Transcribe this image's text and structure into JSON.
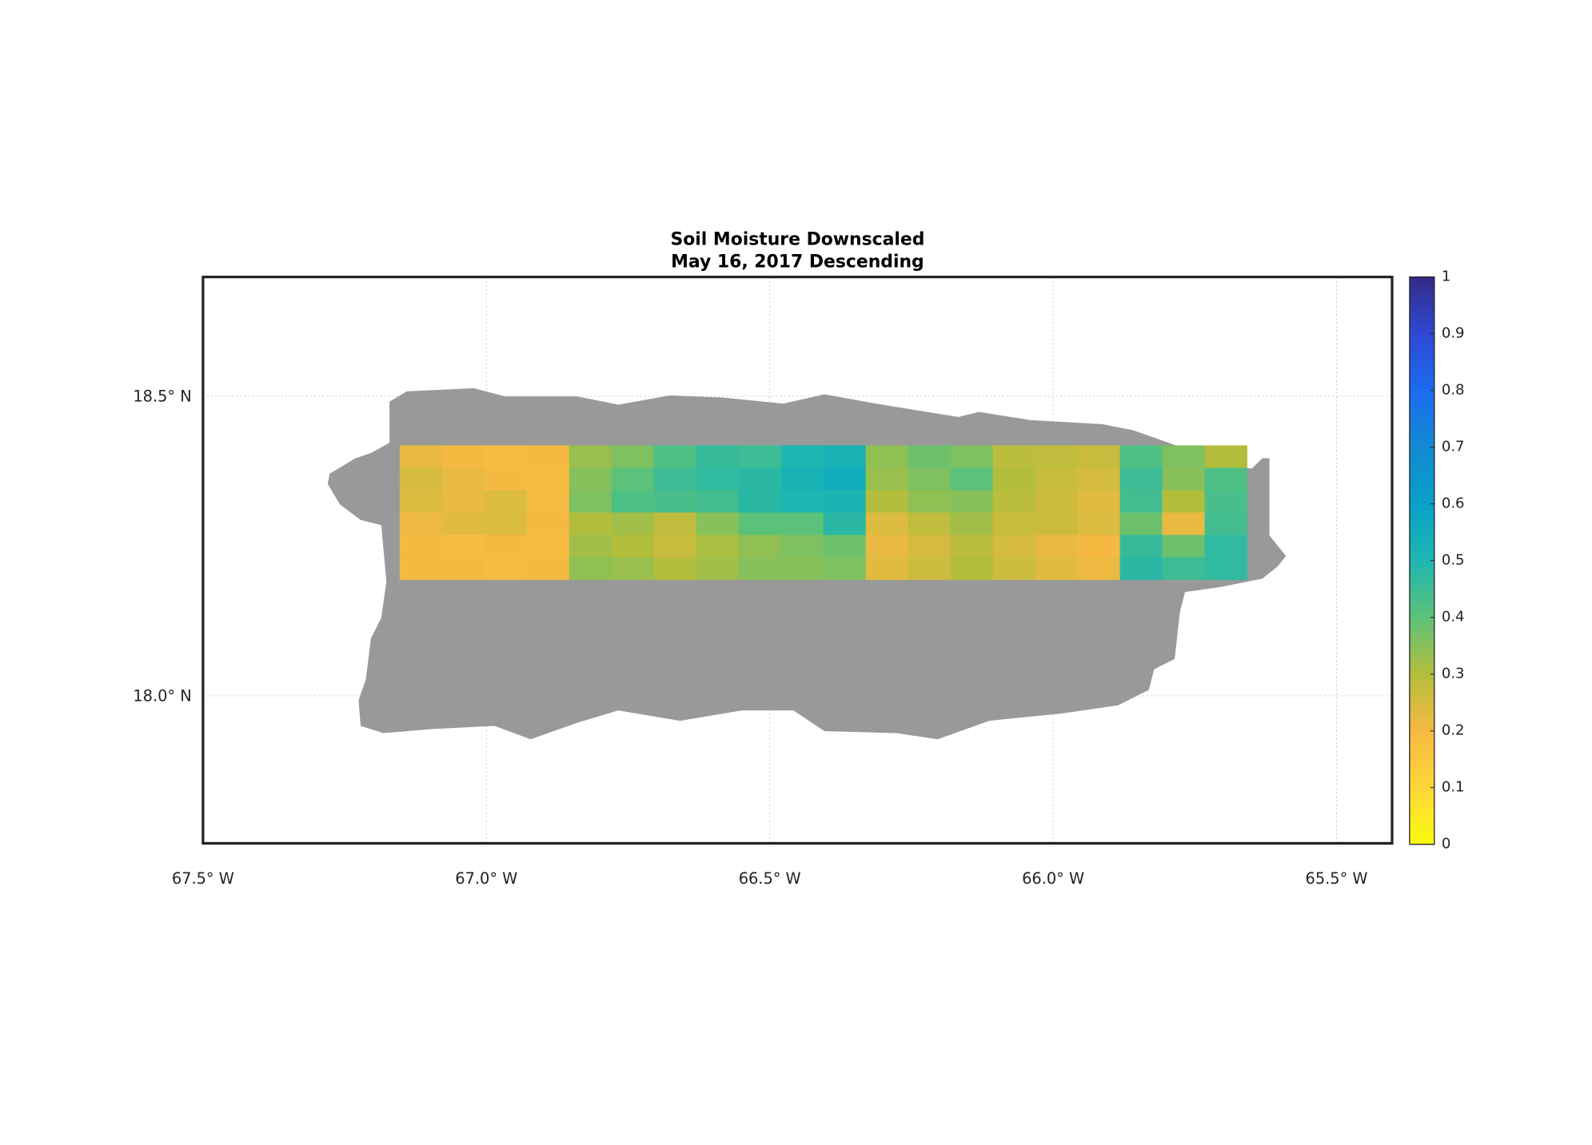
{
  "chart_data": {
    "type": "heatmap",
    "title": "Soil Moisture Downscaled",
    "subtitle": "May 16, 2017 Descending",
    "xlim": [
      -67.5,
      -65.402
    ],
    "ylim": [
      17.754,
      18.699
    ],
    "xticks": [
      {
        "value": -67.5,
        "label": "67.5° W"
      },
      {
        "value": -67.0,
        "label": "67.0° W"
      },
      {
        "value": -66.5,
        "label": "66.5° W"
      },
      {
        "value": -66.0,
        "label": "66.0° W"
      },
      {
        "value": -65.5,
        "label": "65.5° W"
      }
    ],
    "yticks": [
      {
        "value": 18.0,
        "label": "18.0° N"
      },
      {
        "value": 18.5,
        "label": "18.5° N"
      }
    ],
    "grid": true,
    "grid_lon": [
      -67.153,
      -65.658
    ],
    "grid_lat": [
      18.418,
      18.194
    ],
    "values": [
      [
        0.22,
        0.2,
        0.19,
        0.2,
        0.33,
        0.36,
        0.42,
        0.46,
        0.45,
        0.5,
        0.52,
        0.34,
        0.38,
        0.36,
        0.29,
        0.28,
        0.27,
        0.42,
        0.36,
        0.3
      ],
      [
        0.25,
        0.22,
        0.2,
        0.19,
        0.35,
        0.4,
        0.45,
        0.47,
        0.48,
        0.52,
        0.55,
        0.33,
        0.36,
        0.4,
        0.3,
        0.27,
        0.25,
        0.45,
        0.35,
        0.42
      ],
      [
        0.24,
        0.22,
        0.24,
        0.19,
        0.36,
        0.42,
        0.43,
        0.44,
        0.48,
        0.5,
        0.51,
        0.3,
        0.34,
        0.35,
        0.29,
        0.26,
        0.23,
        0.44,
        0.3,
        0.43
      ],
      [
        0.21,
        0.23,
        0.24,
        0.2,
        0.3,
        0.32,
        0.28,
        0.35,
        0.4,
        0.4,
        0.48,
        0.24,
        0.28,
        0.32,
        0.27,
        0.26,
        0.24,
        0.38,
        0.22,
        0.44
      ],
      [
        0.2,
        0.19,
        0.2,
        0.19,
        0.32,
        0.3,
        0.27,
        0.31,
        0.34,
        0.36,
        0.38,
        0.22,
        0.25,
        0.29,
        0.25,
        0.22,
        0.2,
        0.46,
        0.38,
        0.47
      ],
      [
        0.2,
        0.2,
        0.19,
        0.2,
        0.34,
        0.33,
        0.3,
        0.32,
        0.35,
        0.35,
        0.36,
        0.23,
        0.26,
        0.3,
        0.26,
        0.23,
        0.21,
        0.48,
        0.45,
        0.47
      ]
    ],
    "clim": [
      0,
      1
    ],
    "colorbar_ticks": [
      0,
      0.1,
      0.2,
      0.3,
      0.4,
      0.5,
      0.6,
      0.7,
      0.8,
      0.9,
      1
    ],
    "colormap": [
      "#f9fb0e",
      "#fed638",
      "#f5b942",
      "#b3bd3c",
      "#5cc279",
      "#1db6b0",
      "#07a0c8",
      "#1389d3",
      "#1a6cf0",
      "#2e48d3",
      "#352a87"
    ],
    "mask_color": "#999999"
  }
}
